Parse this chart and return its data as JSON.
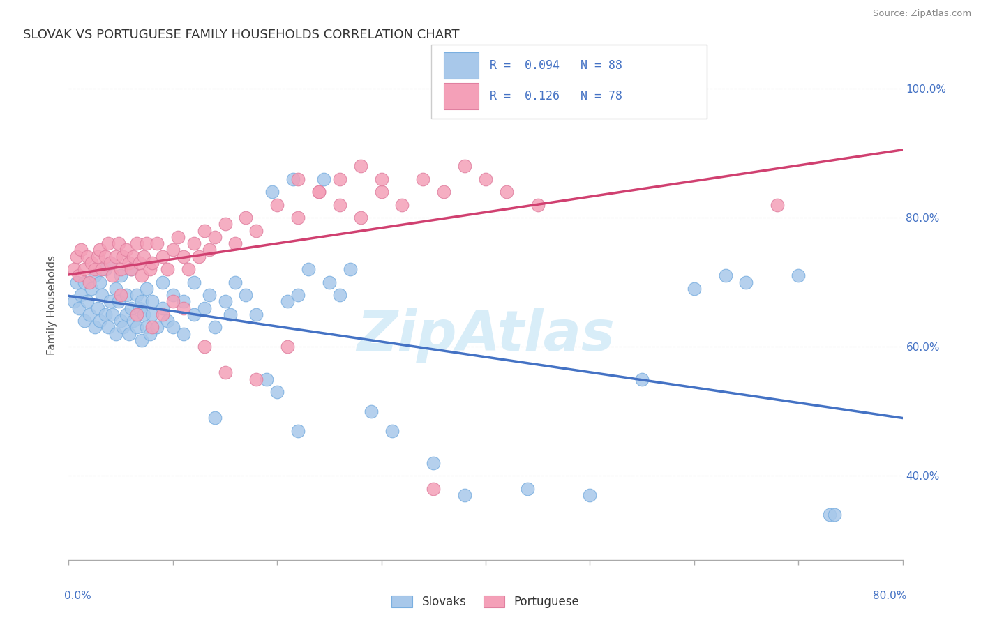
{
  "title": "SLOVAK VS PORTUGUESE FAMILY HOUSEHOLDS CORRELATION CHART",
  "source": "Source: ZipAtlas.com",
  "ylabel": "Family Households",
  "xlim": [
    0.0,
    0.8
  ],
  "ylim": [
    0.27,
    1.06
  ],
  "slovak_color": "#a8c8ea",
  "portuguese_color": "#f4a0b8",
  "slovak_edge_color": "#7aafe0",
  "portuguese_edge_color": "#e080a0",
  "trendline_slovak_color": "#4472c4",
  "trendline_portuguese_color": "#d04070",
  "background_color": "#ffffff",
  "grid_color": "#cccccc",
  "ytick_color": "#4472c4",
  "xtick_label_color": "#4472c4",
  "ylabel_color": "#555555",
  "watermark_color": "#d8edf8",
  "title_color": "#333333",
  "slovaks_x": [
    0.005,
    0.008,
    0.01,
    0.012,
    0.015,
    0.015,
    0.018,
    0.02,
    0.022,
    0.025,
    0.025,
    0.028,
    0.03,
    0.03,
    0.032,
    0.035,
    0.035,
    0.038,
    0.04,
    0.04,
    0.042,
    0.045,
    0.045,
    0.048,
    0.05,
    0.05,
    0.052,
    0.055,
    0.055,
    0.058,
    0.06,
    0.06,
    0.062,
    0.065,
    0.065,
    0.068,
    0.07,
    0.07,
    0.072,
    0.075,
    0.075,
    0.078,
    0.08,
    0.08,
    0.085,
    0.09,
    0.09,
    0.095,
    0.1,
    0.1,
    0.11,
    0.11,
    0.12,
    0.12,
    0.13,
    0.135,
    0.14,
    0.15,
    0.155,
    0.16,
    0.17,
    0.18,
    0.19,
    0.2,
    0.21,
    0.22,
    0.23,
    0.25,
    0.26,
    0.27,
    0.29,
    0.31,
    0.195,
    0.215,
    0.245,
    0.35,
    0.38,
    0.44,
    0.5,
    0.55,
    0.6,
    0.63,
    0.65,
    0.7,
    0.73,
    0.735,
    0.14,
    0.22
  ],
  "slovaks_y": [
    0.67,
    0.7,
    0.66,
    0.68,
    0.64,
    0.7,
    0.67,
    0.65,
    0.69,
    0.63,
    0.71,
    0.66,
    0.64,
    0.7,
    0.68,
    0.65,
    0.72,
    0.63,
    0.67,
    0.73,
    0.65,
    0.62,
    0.69,
    0.67,
    0.64,
    0.71,
    0.63,
    0.68,
    0.65,
    0.62,
    0.66,
    0.72,
    0.64,
    0.68,
    0.63,
    0.66,
    0.61,
    0.67,
    0.65,
    0.63,
    0.69,
    0.62,
    0.67,
    0.65,
    0.63,
    0.66,
    0.7,
    0.64,
    0.68,
    0.63,
    0.67,
    0.62,
    0.65,
    0.7,
    0.66,
    0.68,
    0.63,
    0.67,
    0.65,
    0.7,
    0.68,
    0.65,
    0.55,
    0.53,
    0.67,
    0.68,
    0.72,
    0.7,
    0.68,
    0.72,
    0.5,
    0.47,
    0.84,
    0.86,
    0.86,
    0.42,
    0.37,
    0.38,
    0.37,
    0.55,
    0.69,
    0.71,
    0.7,
    0.71,
    0.34,
    0.34,
    0.49,
    0.47
  ],
  "portuguese_x": [
    0.005,
    0.008,
    0.01,
    0.012,
    0.015,
    0.018,
    0.02,
    0.022,
    0.025,
    0.028,
    0.03,
    0.032,
    0.035,
    0.038,
    0.04,
    0.042,
    0.045,
    0.048,
    0.05,
    0.052,
    0.055,
    0.058,
    0.06,
    0.062,
    0.065,
    0.068,
    0.07,
    0.072,
    0.075,
    0.078,
    0.08,
    0.085,
    0.09,
    0.095,
    0.1,
    0.105,
    0.11,
    0.115,
    0.12,
    0.125,
    0.13,
    0.135,
    0.14,
    0.15,
    0.16,
    0.17,
    0.18,
    0.2,
    0.22,
    0.24,
    0.26,
    0.28,
    0.3,
    0.32,
    0.34,
    0.36,
    0.38,
    0.4,
    0.42,
    0.45,
    0.22,
    0.24,
    0.26,
    0.28,
    0.3,
    0.05,
    0.065,
    0.08,
    0.09,
    0.1,
    0.11,
    0.13,
    0.15,
    0.18,
    0.21,
    0.35,
    0.68
  ],
  "portuguese_y": [
    0.72,
    0.74,
    0.71,
    0.75,
    0.72,
    0.74,
    0.7,
    0.73,
    0.72,
    0.74,
    0.75,
    0.72,
    0.74,
    0.76,
    0.73,
    0.71,
    0.74,
    0.76,
    0.72,
    0.74,
    0.75,
    0.73,
    0.72,
    0.74,
    0.76,
    0.73,
    0.71,
    0.74,
    0.76,
    0.72,
    0.73,
    0.76,
    0.74,
    0.72,
    0.75,
    0.77,
    0.74,
    0.72,
    0.76,
    0.74,
    0.78,
    0.75,
    0.77,
    0.79,
    0.76,
    0.8,
    0.78,
    0.82,
    0.8,
    0.84,
    0.82,
    0.8,
    0.84,
    0.82,
    0.86,
    0.84,
    0.88,
    0.86,
    0.84,
    0.82,
    0.86,
    0.84,
    0.86,
    0.88,
    0.86,
    0.68,
    0.65,
    0.63,
    0.65,
    0.67,
    0.66,
    0.6,
    0.56,
    0.55,
    0.6,
    0.38,
    0.82
  ]
}
